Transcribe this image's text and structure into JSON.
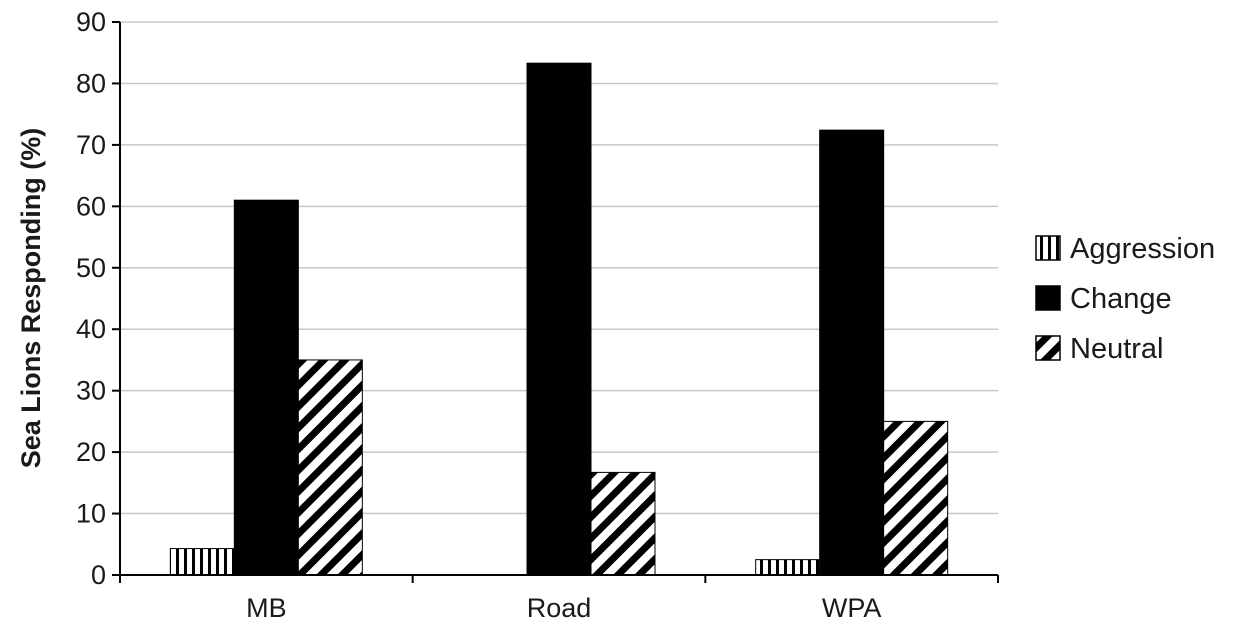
{
  "chart_data": {
    "type": "bar",
    "title": "",
    "xlabel": "",
    "ylabel": "Sea Lions Responding (%)",
    "ylim": [
      0,
      90
    ],
    "yticks": [
      0,
      10,
      20,
      30,
      40,
      50,
      60,
      70,
      80,
      90
    ],
    "grid": true,
    "legend_position": "right",
    "categories": [
      "MB",
      "Road",
      "WPA"
    ],
    "series": [
      {
        "name": "Aggression",
        "values": [
          4.3,
          0,
          2.5
        ],
        "pattern": "vertical-stripes",
        "color": "#000000"
      },
      {
        "name": "Change",
        "values": [
          61,
          83.3,
          72.4
        ],
        "pattern": "solid",
        "color": "#000000"
      },
      {
        "name": "Neutral",
        "values": [
          35,
          16.7,
          25
        ],
        "pattern": "diagonal-stripes",
        "color": "#000000"
      }
    ]
  }
}
